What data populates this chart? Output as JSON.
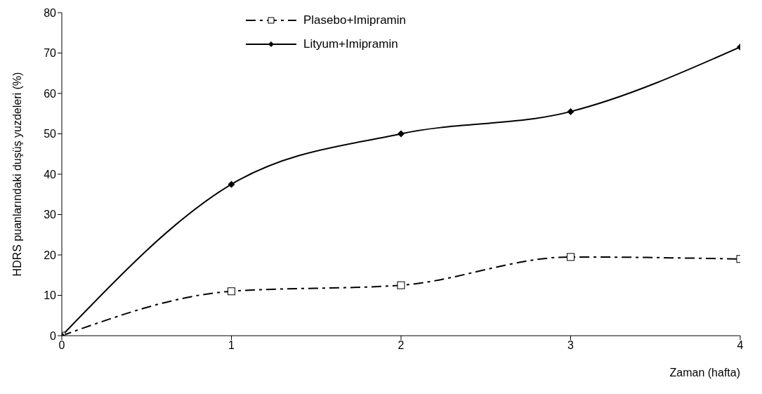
{
  "chart_data": {
    "type": "line",
    "xlabel": "Zaman (hafta)",
    "ylabel": "HDRS puanlarındaki duşüş yuzdeleri (%)",
    "x": [
      0,
      1,
      2,
      3,
      4
    ],
    "series": [
      {
        "name": "Plasebo+Imipramin",
        "color": "#000000",
        "values": [
          0,
          11,
          12.5,
          19.5,
          19
        ],
        "marker": "square",
        "line_style": "dashed"
      },
      {
        "name": "Lityum+Imipramin",
        "color": "#000000",
        "values": [
          0,
          37.5,
          50,
          55.5,
          71.5
        ],
        "marker": "diamond",
        "line_style": "solid"
      }
    ],
    "xlim": [
      0,
      4
    ],
    "xticks": [
      0,
      1,
      2,
      3,
      4
    ],
    "ylim": [
      0,
      80
    ],
    "yticks": [
      0,
      10,
      20,
      30,
      40,
      50,
      60,
      70,
      80
    ],
    "grid": false,
    "legend": "top"
  }
}
